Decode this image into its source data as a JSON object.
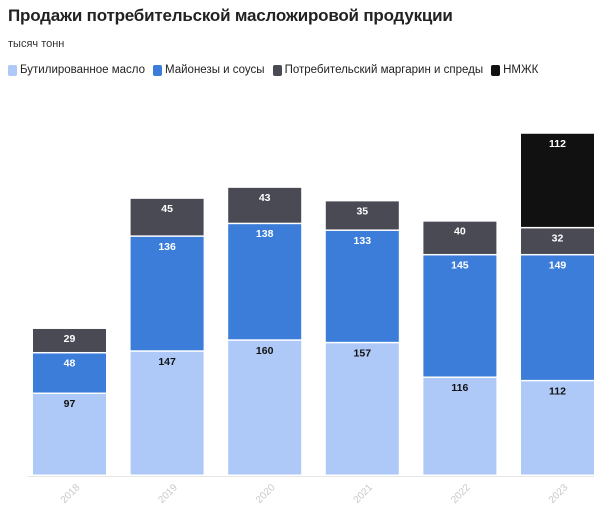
{
  "chart_data": {
    "type": "bar",
    "stacked": true,
    "title": "Продажи потребительской масложировой продукции",
    "subtitle": "тысяч тонн",
    "categories": [
      "2018",
      "2019",
      "2020",
      "2021",
      "2022",
      "2023"
    ],
    "series": [
      {
        "name": "Бутилированное масло",
        "color": "#aec9f7",
        "values": [
          97,
          147,
          160,
          157,
          116,
          112
        ]
      },
      {
        "name": "Майонезы и соусы",
        "color": "#3b7dd8",
        "values": [
          48,
          136,
          138,
          133,
          145,
          149
        ]
      },
      {
        "name": "Потребительский маргарин и спреды",
        "color": "#4a4a54",
        "values": [
          29,
          45,
          43,
          35,
          40,
          32
        ]
      },
      {
        "name": "НМЖК",
        "color": "#111111",
        "values": [
          0,
          0,
          0,
          0,
          0,
          112
        ]
      }
    ],
    "legend_position": "top",
    "grid": false,
    "ylim": [
      0,
      405
    ]
  }
}
